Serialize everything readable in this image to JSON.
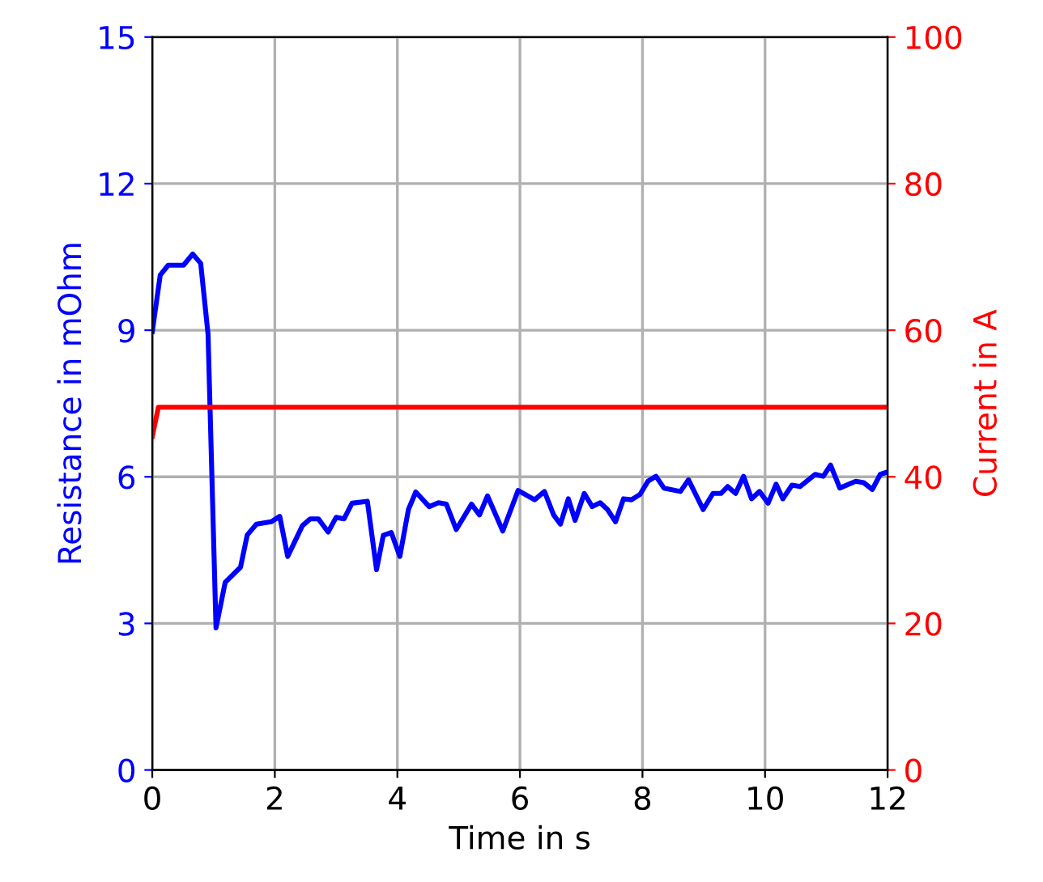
{
  "chart_data": {
    "type": "line",
    "xlabel": "Time in s",
    "ylabel": "Resistance in mOhm",
    "y2label": "Current in A",
    "xlim": [
      0,
      12
    ],
    "xticks": [
      0,
      2,
      4,
      6,
      8,
      10,
      12
    ],
    "ylim": [
      0,
      15
    ],
    "yticks": [
      0,
      3,
      6,
      9,
      12,
      15
    ],
    "y2lim": [
      0,
      100
    ],
    "y2ticks": [
      0,
      20,
      40,
      60,
      80,
      100
    ],
    "grid": true,
    "series": [
      {
        "color": "#0000ff",
        "axis": "y",
        "x": [
          0.0,
          0.13,
          0.26,
          0.51,
          0.66,
          0.79,
          0.91,
          1.04,
          1.19,
          1.44,
          1.55,
          1.7,
          1.94,
          2.08,
          2.21,
          2.45,
          2.58,
          2.71,
          2.87,
          3.0,
          3.13,
          3.26,
          3.51,
          3.66,
          3.77,
          3.9,
          4.04,
          4.18,
          4.3,
          4.52,
          4.67,
          4.8,
          4.96,
          5.21,
          5.34,
          5.47,
          5.72,
          5.97,
          6.24,
          6.4,
          6.55,
          6.66,
          6.79,
          6.9,
          7.05,
          7.18,
          7.31,
          7.43,
          7.56,
          7.69,
          7.82,
          7.96,
          8.09,
          8.22,
          8.35,
          8.62,
          8.75,
          8.99,
          9.15,
          9.28,
          9.39,
          9.52,
          9.65,
          9.78,
          9.91,
          10.05,
          10.18,
          10.29,
          10.44,
          10.57,
          10.82,
          10.95,
          11.07,
          11.22,
          11.48,
          11.61,
          11.75,
          11.88,
          12.0
        ],
        "values": [
          8.97,
          10.13,
          10.33,
          10.33,
          10.56,
          10.37,
          8.92,
          2.91,
          3.84,
          4.15,
          4.81,
          5.03,
          5.08,
          5.19,
          4.37,
          5.0,
          5.14,
          5.14,
          4.87,
          5.17,
          5.14,
          5.46,
          5.5,
          4.1,
          4.8,
          4.86,
          4.37,
          5.33,
          5.69,
          5.39,
          5.47,
          5.44,
          4.92,
          5.44,
          5.22,
          5.61,
          4.89,
          5.72,
          5.53,
          5.7,
          5.22,
          5.03,
          5.55,
          5.11,
          5.66,
          5.39,
          5.47,
          5.33,
          5.08,
          5.55,
          5.53,
          5.64,
          5.91,
          6.01,
          5.77,
          5.7,
          5.94,
          5.33,
          5.66,
          5.66,
          5.8,
          5.66,
          6.01,
          5.55,
          5.7,
          5.46,
          5.85,
          5.55,
          5.83,
          5.8,
          6.05,
          6.01,
          6.24,
          5.77,
          5.91,
          5.88,
          5.74,
          6.05,
          6.1
        ]
      },
      {
        "color": "#ff0000",
        "axis": "y2",
        "x": [
          0.0,
          0.1,
          12.0
        ],
        "values": [
          45.5,
          49.5,
          49.5
        ]
      }
    ]
  }
}
